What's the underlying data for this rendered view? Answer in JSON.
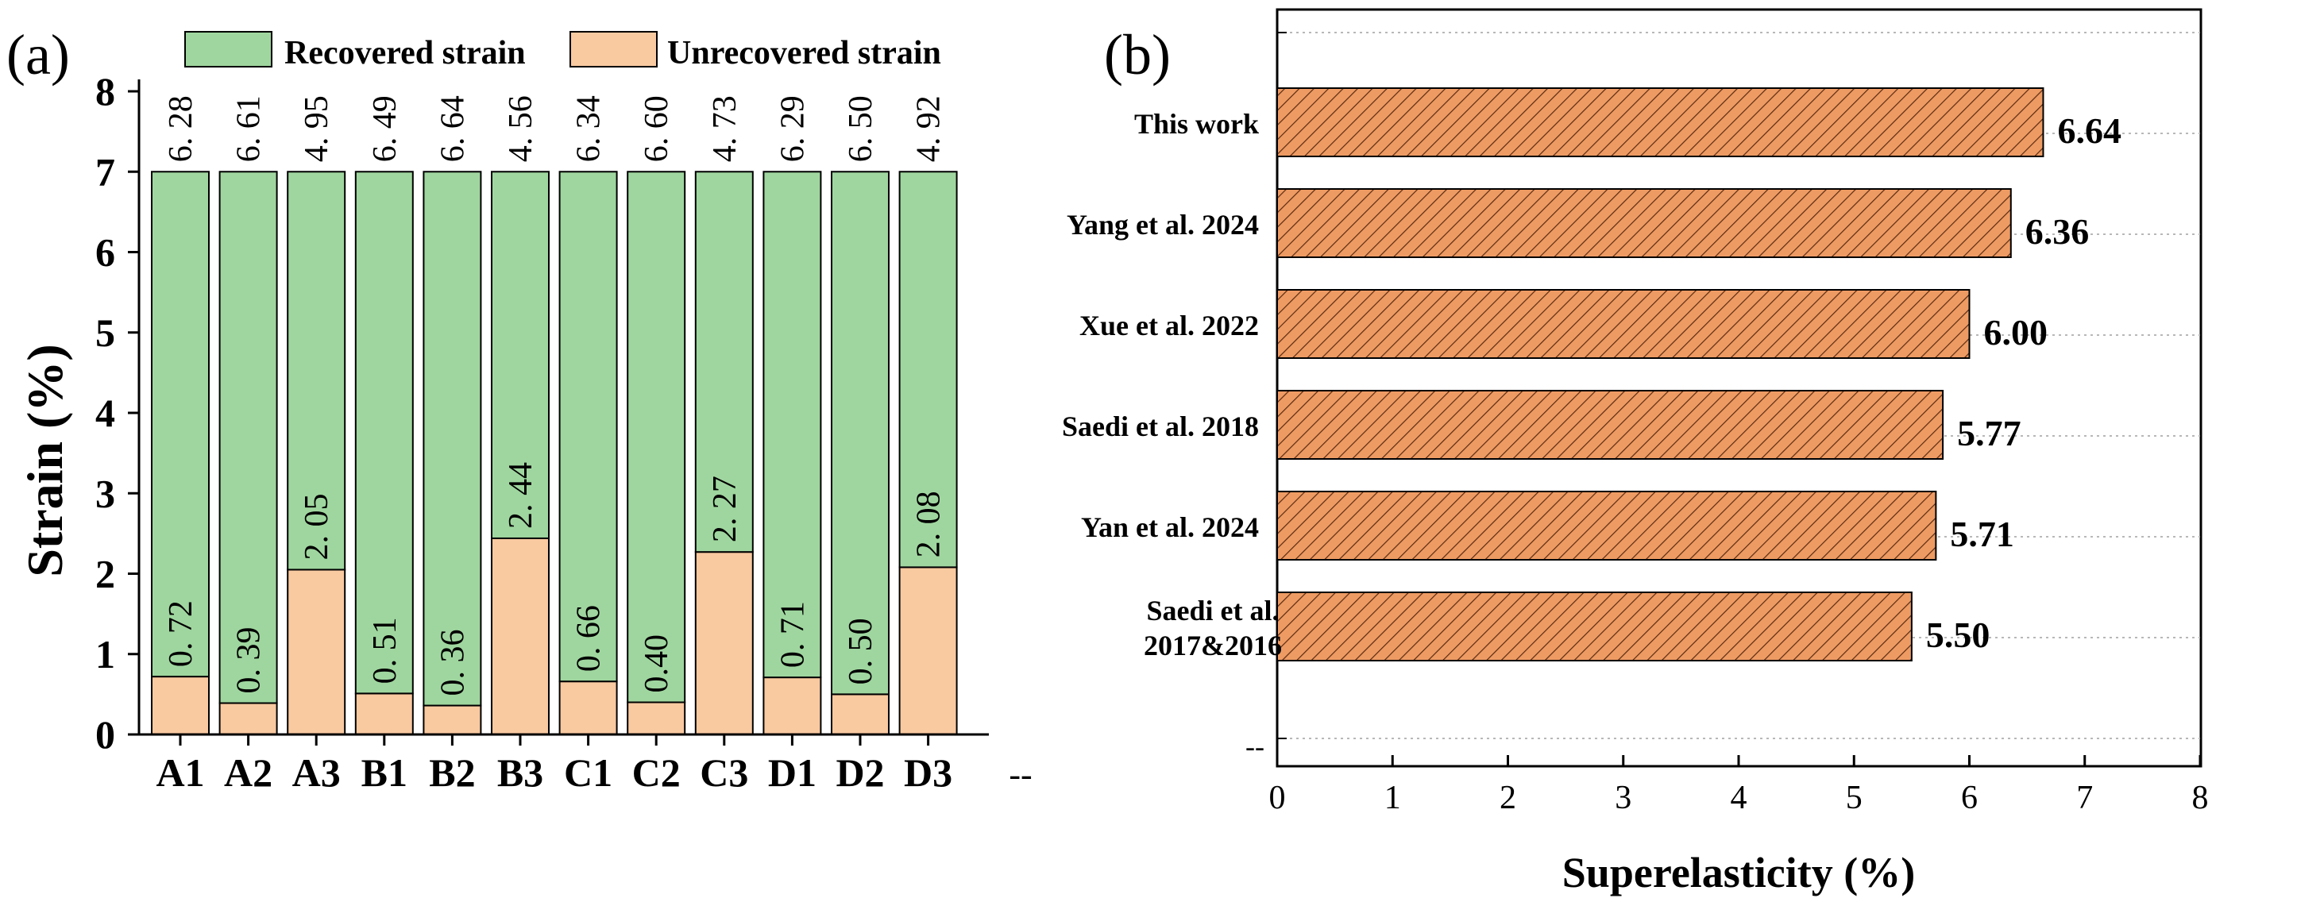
{
  "chart_data": [
    {
      "type": "bar",
      "stacked": true,
      "panel_label": "(a)",
      "ylabel": "Strain (%)",
      "xlabel": "",
      "ylim": [
        0,
        8
      ],
      "yticks": [
        "0",
        "1",
        "2",
        "3",
        "4",
        "5",
        "6",
        "7",
        "8"
      ],
      "categories": [
        "A1",
        "A2",
        "A3",
        "B1",
        "B2",
        "B3",
        "C1",
        "C2",
        "C3",
        "D1",
        "D2",
        "D3"
      ],
      "trailing_tick_label": "--",
      "legend_position": "top",
      "series": [
        {
          "name": "Unrecovered strain",
          "color": "#f9c9a0",
          "values": [
            0.72,
            0.39,
            2.05,
            0.51,
            0.36,
            2.44,
            0.66,
            0.4,
            2.27,
            0.71,
            0.5,
            2.08
          ],
          "labels": [
            "0. 72",
            "0. 39",
            "2. 05",
            "0. 51",
            "0. 36",
            "2. 44",
            "0. 66",
            "0.40",
            "2. 27",
            "0. 71",
            "0. 50",
            "2. 08"
          ]
        },
        {
          "name": "Recovered strain",
          "color": "#9fd69f",
          "values": [
            6.28,
            6.61,
            4.95,
            6.49,
            6.64,
            4.56,
            6.34,
            6.6,
            4.73,
            6.29,
            6.5,
            4.92
          ],
          "labels": [
            "6. 28",
            "6. 61",
            "4. 95",
            "6. 49",
            "6. 64",
            "4. 56",
            "6. 34",
            "6. 60",
            "4. 73",
            "6. 29",
            "6. 50",
            "4. 92"
          ]
        }
      ]
    },
    {
      "type": "bar",
      "orientation": "horizontal",
      "panel_label": "(b)",
      "xlabel": "Superelasticity (%)",
      "ylabel": "",
      "xlim": [
        0,
        8
      ],
      "xticks": [
        "0",
        "1",
        "2",
        "3",
        "4",
        "5",
        "6",
        "7",
        "8"
      ],
      "bar_color": "#e8955a",
      "hatch": "diagonal",
      "categories": [
        "This work",
        "Yang et al. 2024",
        "Xue et al. 2022",
        "Saedi et al. 2018",
        "Yan et al. 2024",
        "Saedi et al.\n2017&2016"
      ],
      "values": [
        6.64,
        6.36,
        6.0,
        5.77,
        5.71,
        5.5
      ],
      "labels": [
        "6.64",
        "6.36",
        "6.00",
        "5.77",
        "5.71",
        "5.50"
      ],
      "trailing_tick_label": "--"
    }
  ]
}
